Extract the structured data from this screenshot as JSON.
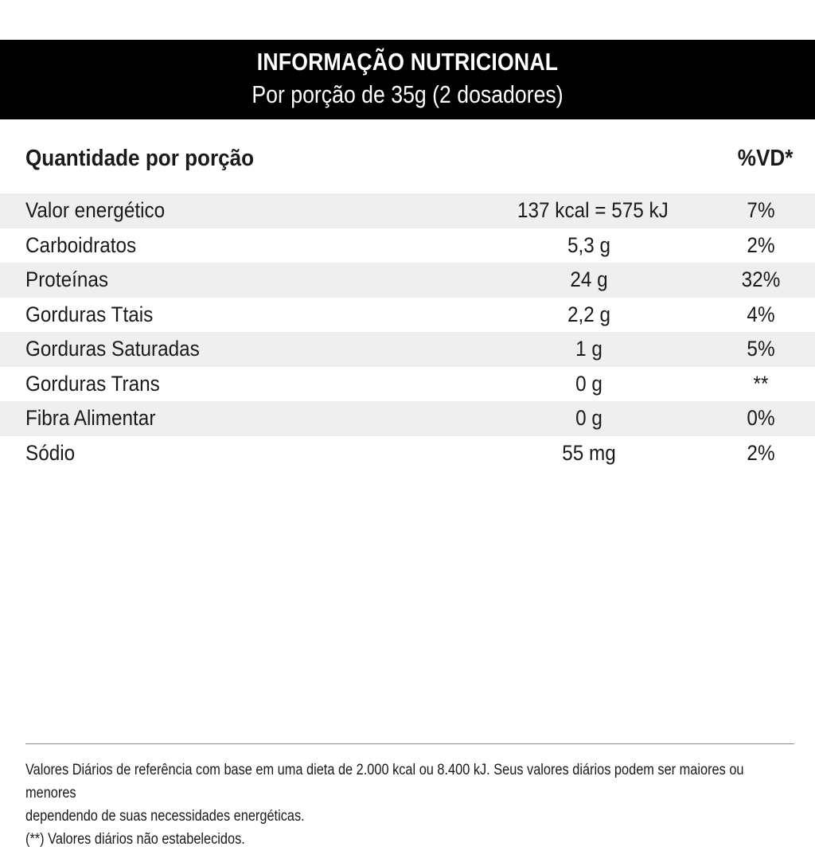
{
  "header": {
    "title": "INFORMAÇÃO NUTRICIONAL",
    "subtitle": "Por porção de 35g (2 dosadores)"
  },
  "columns": {
    "quantity": "Quantidade por porção",
    "daily_value": "%VD*"
  },
  "rows": [
    {
      "name": "Valor energético",
      "amount": "137 kcal = 575 kJ",
      "pct": "7%"
    },
    {
      "name": "Carboidratos",
      "amount": "5,3 g",
      "pct": "2%"
    },
    {
      "name": "Proteínas",
      "amount": "24 g",
      "pct": "32%"
    },
    {
      "name": "Gorduras Ttais",
      "amount": "2,2 g",
      "pct": "4%"
    },
    {
      "name": "Gorduras Saturadas",
      "amount": "1 g",
      "pct": "5%"
    },
    {
      "name": "Gorduras Trans",
      "amount": "0 g",
      "pct": "**"
    },
    {
      "name": "Fibra Alimentar",
      "amount": "0 g",
      "pct": "0%"
    },
    {
      "name": "Sódio",
      "amount": "55 mg",
      "pct": "2%"
    }
  ],
  "footnotes": {
    "line1": "Valores Diários de referência com base em uma dieta de 2.000 kcal ou 8.400 kJ. Seus valores diários podem ser maiores ou menores",
    "line2": "dependendo de suas necessidades energéticas.",
    "line3": "(**) Valores diários não estabelecidos."
  }
}
